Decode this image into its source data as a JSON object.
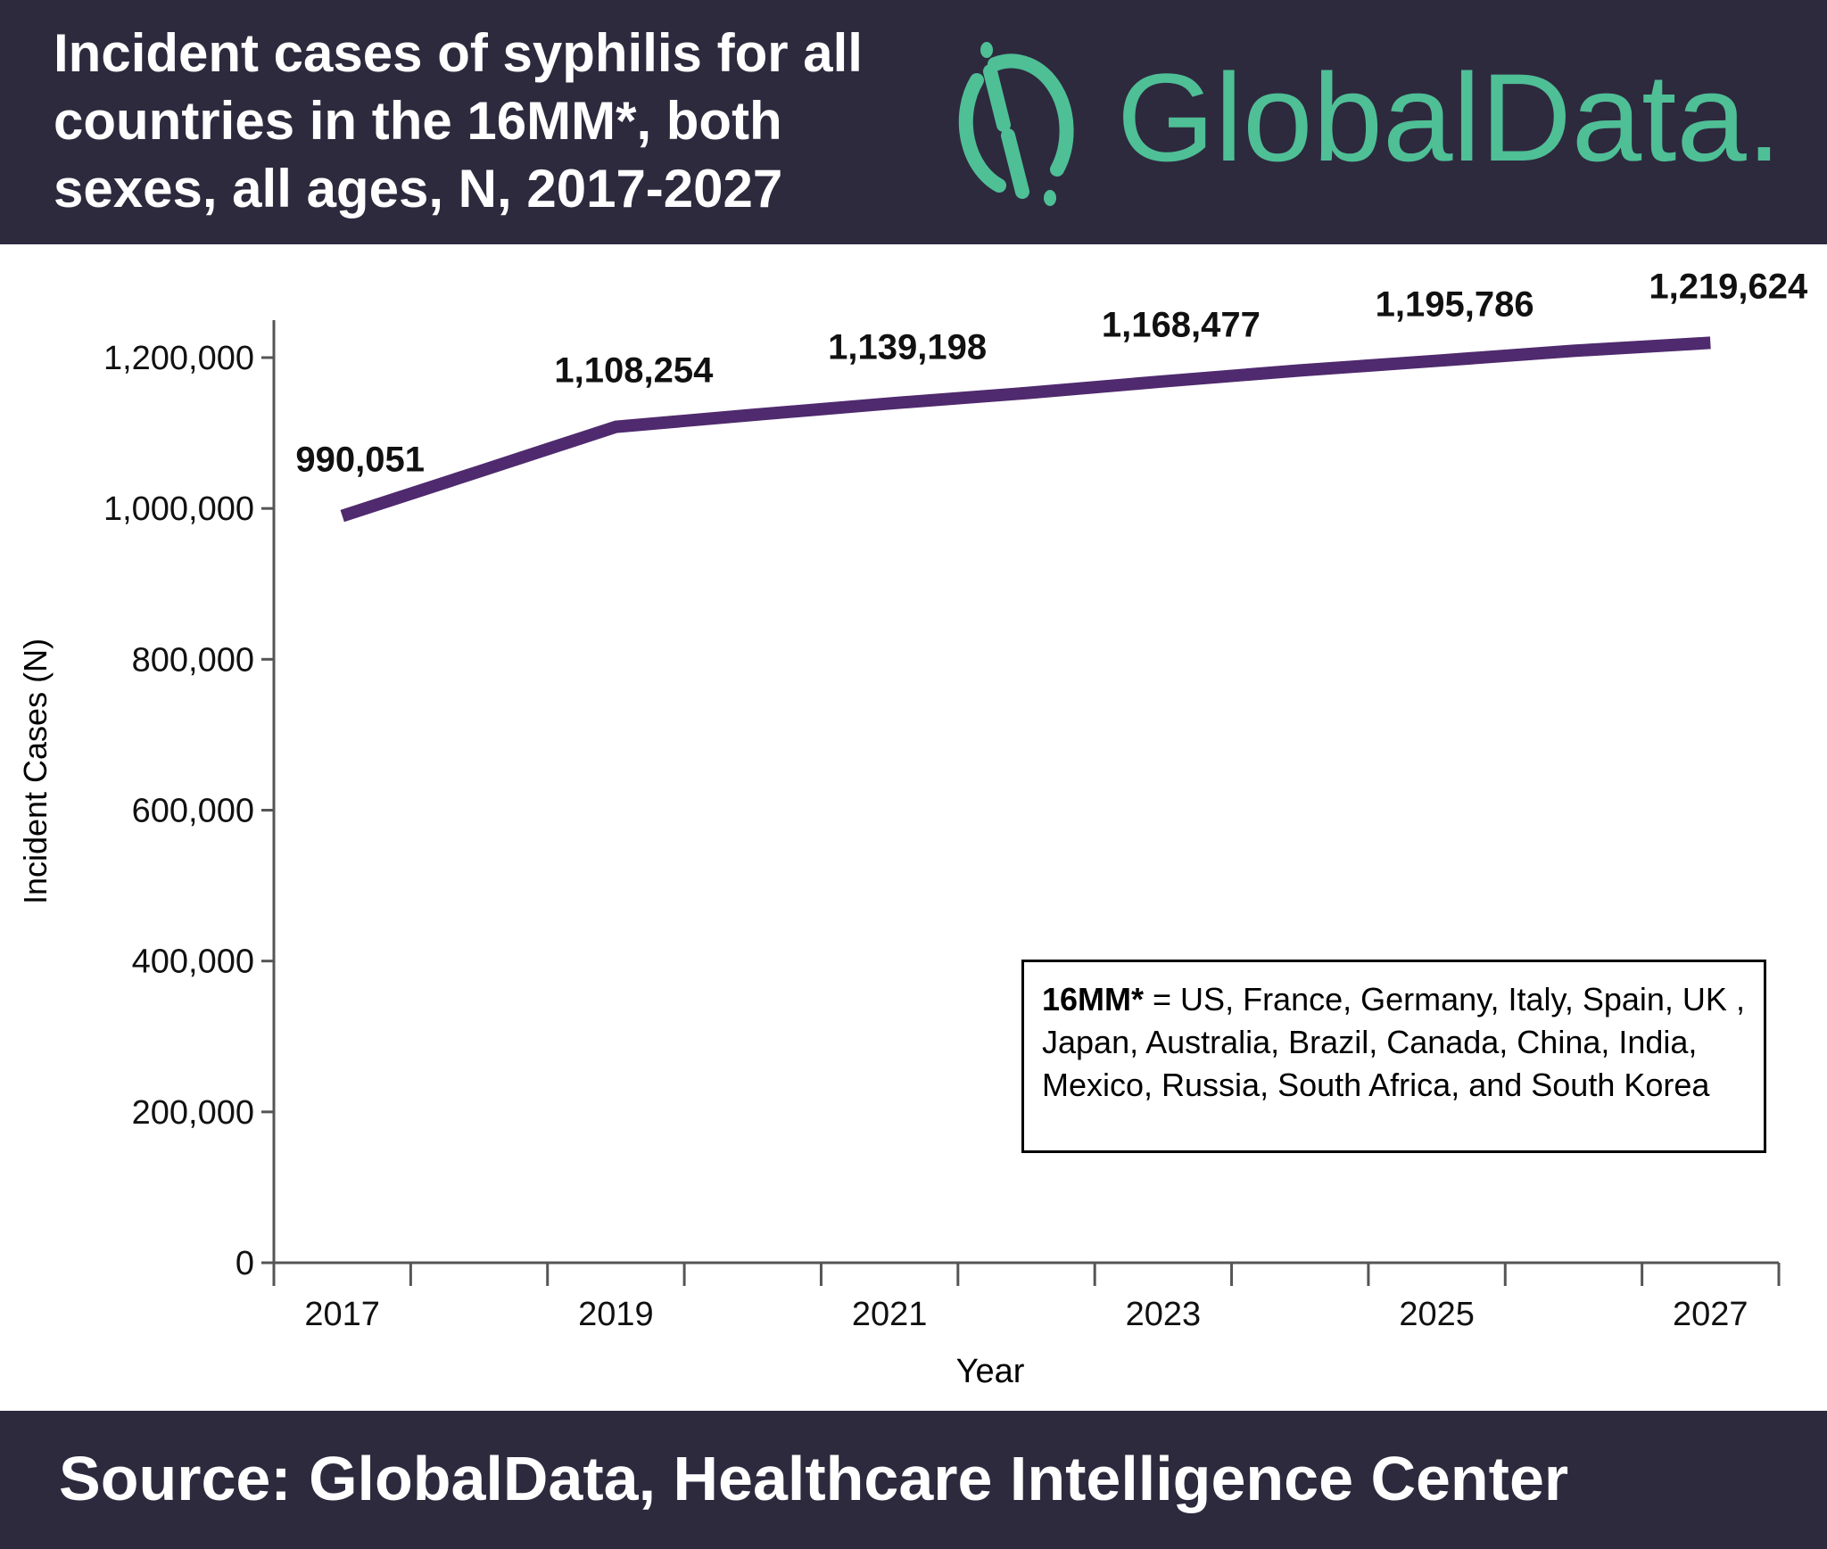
{
  "header": {
    "title_lines": [
      "Incident cases of syphilis for all",
      "countries in the 16MM*, both",
      "sexes, all ages, N, 2017-2027"
    ],
    "logo_text": "GlobalData."
  },
  "footer": {
    "source": "Source: GlobalData, Healthcare Intelligence Center"
  },
  "legend_note": {
    "term": "16MM*",
    "definition": " = US, France, Germany, Italy, Spain, UK , Japan, Australia, Brazil, Canada, China, India, Mexico, Russia, South Africa, and South Korea"
  },
  "colors": {
    "header_bg": "#2d2a3e",
    "line": "#4f2a6e",
    "brand_green": "#4fbf96"
  },
  "chart_data": {
    "type": "line",
    "title": "Incident cases of syphilis for all countries in the 16MM*, both sexes, all ages, N, 2017-2027",
    "xlabel": "Year",
    "ylabel": "Incident Cases (N)",
    "ylim": [
      0,
      1200000
    ],
    "yticks": [
      "0",
      "200,000",
      "400,000",
      "600,000",
      "800,000",
      "1,000,000",
      "1,200,000"
    ],
    "x": [
      2017,
      2018,
      2019,
      2020,
      2021,
      2022,
      2023,
      2024,
      2025,
      2026,
      2027
    ],
    "xtick_labels": [
      "2017",
      "2019",
      "2021",
      "2023",
      "2025",
      "2027"
    ],
    "grid": false,
    "series": [
      {
        "values": [
          990051,
          1049000,
          1108254,
          1124000,
          1139198,
          1153000,
          1168477,
          1183000,
          1195786,
          1209000,
          1219624
        ]
      }
    ],
    "data_labels": [
      {
        "x": 2017,
        "text": "990,051"
      },
      {
        "x": 2019,
        "text": "1,108,254"
      },
      {
        "x": 2021,
        "text": "1,139,198"
      },
      {
        "x": 2023,
        "text": "1,168,477"
      },
      {
        "x": 2025,
        "text": "1,195,786"
      },
      {
        "x": 2027,
        "text": "1,219,624"
      }
    ]
  }
}
